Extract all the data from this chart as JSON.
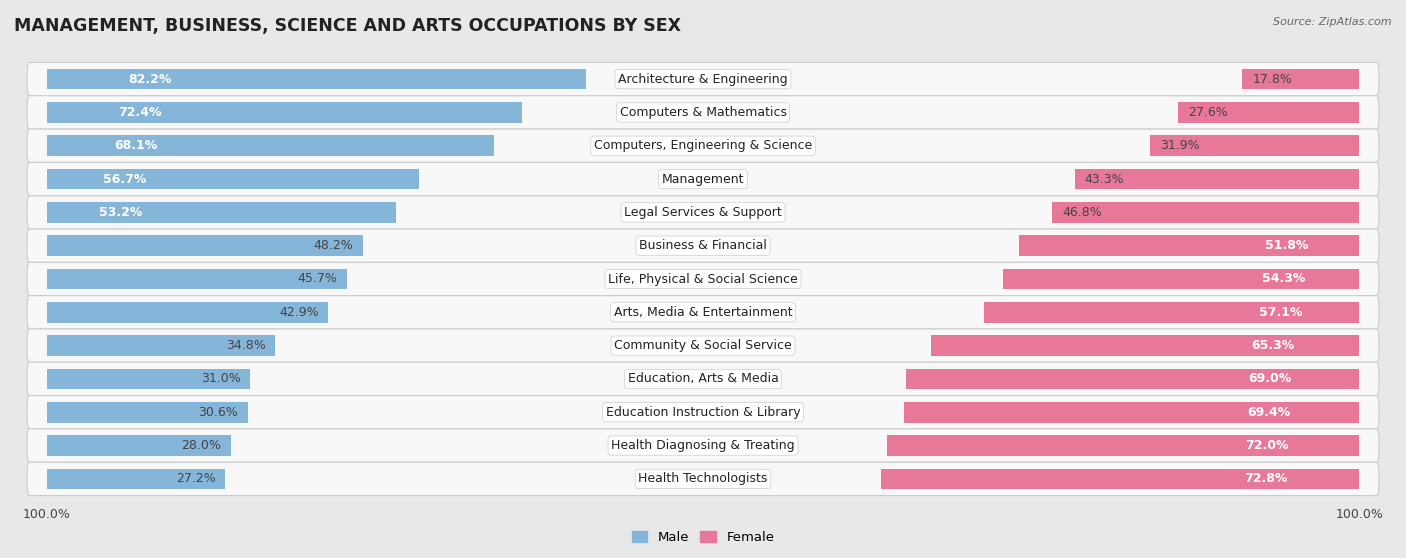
{
  "title": "MANAGEMENT, BUSINESS, SCIENCE AND ARTS OCCUPATIONS BY SEX",
  "source": "Source: ZipAtlas.com",
  "categories": [
    "Architecture & Engineering",
    "Computers & Mathematics",
    "Computers, Engineering & Science",
    "Management",
    "Legal Services & Support",
    "Business & Financial",
    "Life, Physical & Social Science",
    "Arts, Media & Entertainment",
    "Community & Social Service",
    "Education, Arts & Media",
    "Education Instruction & Library",
    "Health Diagnosing & Treating",
    "Health Technologists"
  ],
  "male_pct": [
    82.2,
    72.4,
    68.1,
    56.7,
    53.2,
    48.2,
    45.7,
    42.9,
    34.8,
    31.0,
    30.6,
    28.0,
    27.2
  ],
  "female_pct": [
    17.8,
    27.6,
    31.9,
    43.3,
    46.8,
    51.8,
    54.3,
    57.1,
    65.3,
    69.0,
    69.4,
    72.0,
    72.8
  ],
  "male_color": "#85b5d9",
  "female_color": "#e8789a",
  "bg_color": "#e8e8e8",
  "row_light_color": "#f5f5f5",
  "row_dark_color": "#e0e0e0",
  "bar_height": 0.62,
  "title_fontsize": 12.5,
  "label_fontsize": 9,
  "pct_fontsize": 9,
  "source_fontsize": 8
}
